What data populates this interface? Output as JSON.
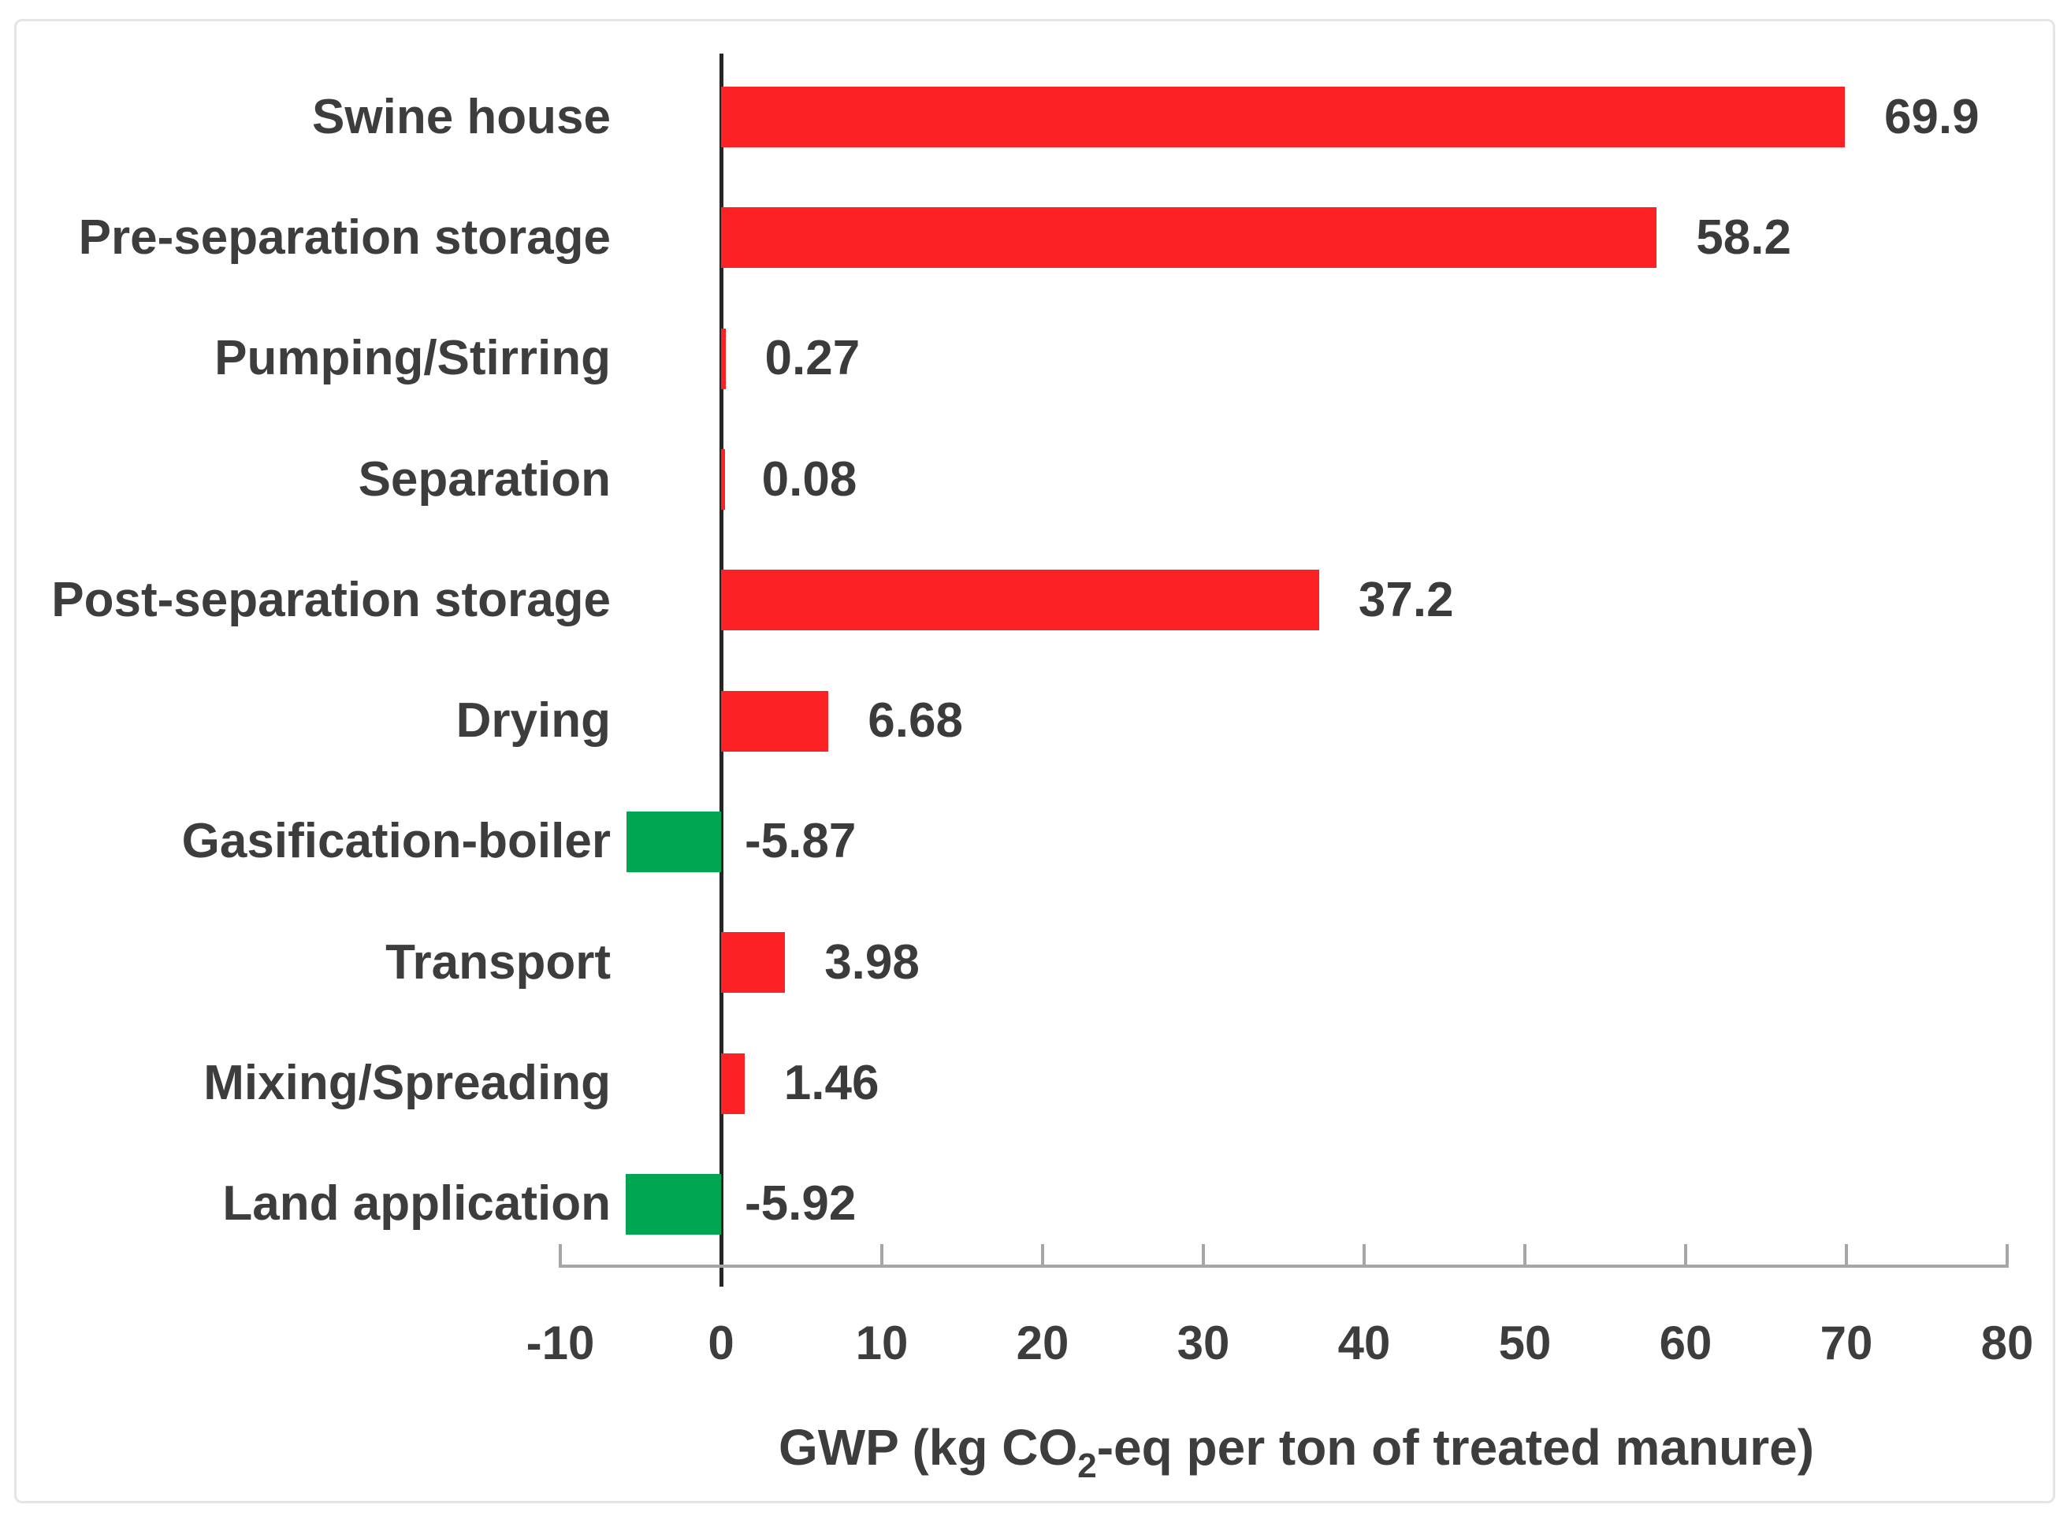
{
  "chart_data": {
    "type": "bar",
    "orientation": "horizontal",
    "title": "",
    "categories": [
      "Swine house",
      "Pre-separation storage",
      "Pumping/Stirring",
      "Separation",
      "Post-separation storage",
      "Drying",
      "Gasification-boiler",
      "Transport",
      "Mixing/Spreading",
      "Land application"
    ],
    "values": [
      69.9,
      58.2,
      0.27,
      0.08,
      37.2,
      6.68,
      -5.87,
      3.98,
      1.46,
      -5.92
    ],
    "data_labels": [
      "69.9",
      "58.2",
      "0.27",
      "0.08",
      "37.2",
      "6.68",
      "-5.87",
      "3.98",
      "1.46",
      "-5.92"
    ],
    "x_ticks": [
      -10,
      0,
      10,
      20,
      30,
      40,
      50,
      60,
      70,
      80
    ],
    "xlim": [
      -10,
      80
    ],
    "xlabel_prefix": "GWP (kg CO",
    "xlabel_subscript": "2",
    "xlabel_suffix": "-eq per ton of treated manure)",
    "positive_color": "#fb2125",
    "negative_color": "#00a651",
    "text_color": "#3d3d3d",
    "axis_line_color": "#262626",
    "baseline_color": "#a6a6a6",
    "grid": false,
    "legend": false,
    "data_label_position": "outside-end"
  }
}
